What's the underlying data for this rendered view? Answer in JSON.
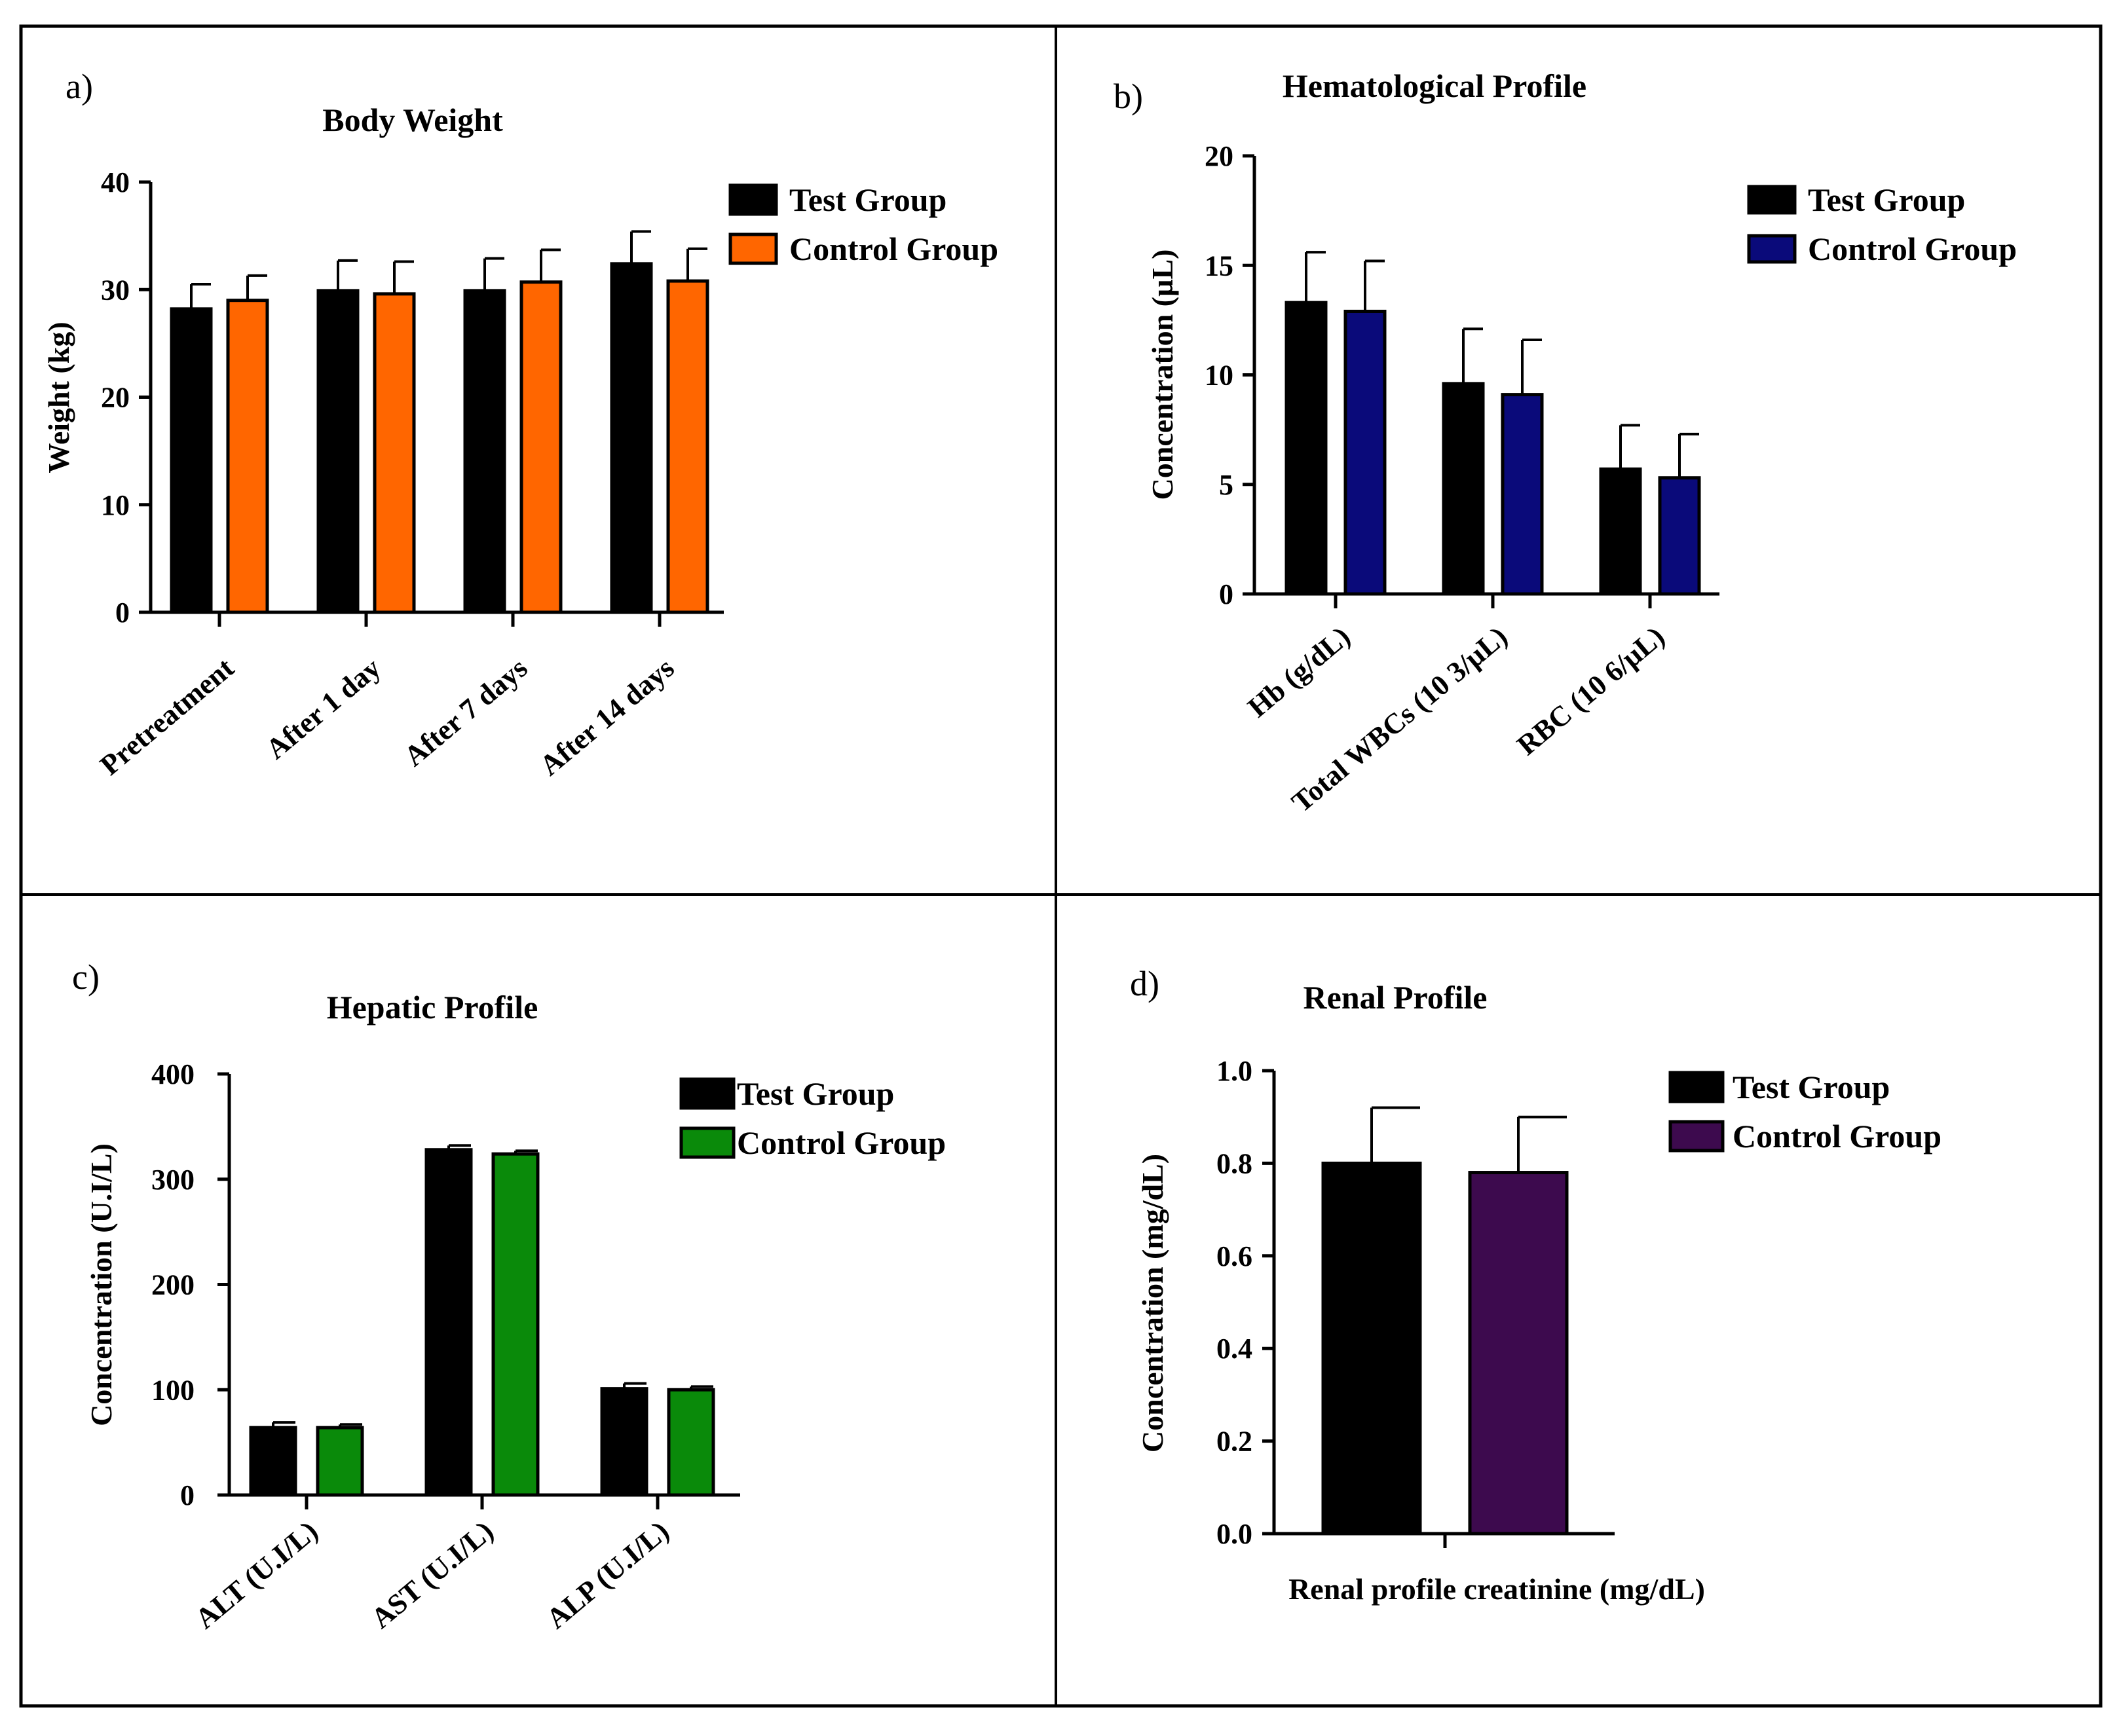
{
  "figure": {
    "panels": [
      "a)",
      "b)",
      "c)",
      "d)"
    ]
  },
  "chart_data": [
    {
      "panel": "a)",
      "type": "bar",
      "title": "Body Weight",
      "xlabel": "",
      "ylabel": "Weight (kg)",
      "ylim": [
        0,
        40
      ],
      "yticks": [
        0,
        10,
        20,
        30,
        40
      ],
      "categories": [
        "Pretreatment",
        "After 1 day",
        "After 7 days",
        "After 14 days"
      ],
      "series": [
        {
          "name": "Test Group",
          "color": "#000000",
          "values": [
            28.2,
            29.9,
            29.9,
            32.4
          ],
          "errors": [
            2.3,
            2.8,
            3.0,
            3.0
          ]
        },
        {
          "name": "Control Group",
          "color": "#ff6600",
          "values": [
            29.0,
            29.6,
            30.7,
            30.8
          ],
          "errors": [
            2.3,
            3.0,
            3.0,
            3.0
          ]
        }
      ],
      "legend": "top-right"
    },
    {
      "panel": "b)",
      "type": "bar",
      "title": "Hematological Profile",
      "xlabel": "",
      "ylabel": "Concentration (µL)",
      "ylim": [
        0,
        20
      ],
      "yticks": [
        0,
        5,
        10,
        15,
        20
      ],
      "categories": [
        "Hb (g/dL)",
        "Total WBCs (10 3/µL)",
        "RBC (10 6/µL)"
      ],
      "series": [
        {
          "name": "Test Group",
          "color": "#000000",
          "values": [
            13.3,
            9.6,
            5.7
          ],
          "errors": [
            2.3,
            2.5,
            2.0
          ]
        },
        {
          "name": "Control Group",
          "color": "#0a0a7a",
          "values": [
            12.9,
            9.1,
            5.3
          ],
          "errors": [
            2.3,
            2.5,
            2.0
          ]
        }
      ],
      "legend": "top-right"
    },
    {
      "panel": "c)",
      "type": "bar",
      "title": "Hepatic Profile",
      "xlabel": "",
      "ylabel": "Concentration (U.I/L)",
      "ylim": [
        0,
        400
      ],
      "yticks": [
        0,
        100,
        200,
        300,
        400
      ],
      "categories": [
        "ALT (U.I/L)",
        "AST (U.I/L)",
        "ALP (U.I/L)"
      ],
      "series": [
        {
          "name": "Test Group",
          "color": "#000000",
          "values": [
            64,
            328,
            101
          ],
          "errors": [
            5,
            4,
            5
          ]
        },
        {
          "name": "Control Group",
          "color": "#0a8a0a",
          "values": [
            64,
            324,
            100
          ],
          "errors": [
            3,
            3,
            3
          ]
        }
      ],
      "legend": "top-right"
    },
    {
      "panel": "d)",
      "type": "bar",
      "title": "Renal Profile",
      "xlabel": "Renal profile creatinine (mg/dL)",
      "ylabel": "Concentration (mg/dL)",
      "ylim": [
        0,
        1.0
      ],
      "yticks": [
        "0.0",
        "0.2",
        "0.4",
        "0.6",
        "0.8",
        "1.0"
      ],
      "categories": [
        ""
      ],
      "series": [
        {
          "name": "Test Group",
          "color": "#000000",
          "values": [
            0.8
          ],
          "errors": [
            0.12
          ]
        },
        {
          "name": "Control Group",
          "color": "#3d0a4e",
          "values": [
            0.78
          ],
          "errors": [
            0.12
          ]
        }
      ],
      "legend": "top-right"
    }
  ]
}
